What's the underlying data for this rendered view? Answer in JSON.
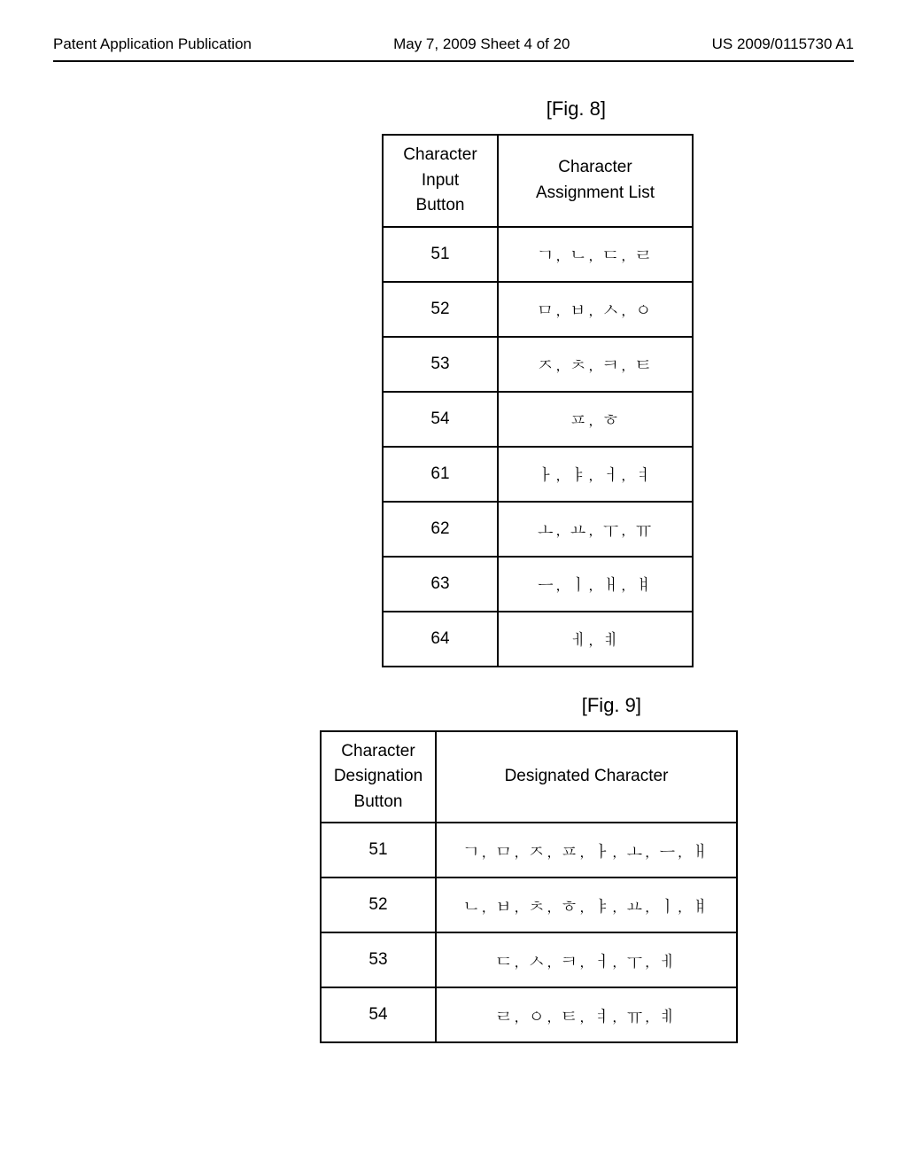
{
  "header": {
    "left": "Patent Application Publication",
    "center": "May 7, 2009  Sheet 4 of 20",
    "right": "US 2009/0115730 A1"
  },
  "fig8": {
    "label": "[Fig. 8]",
    "col1Header": "Character\nInput\nButton",
    "col2Header": "Character\nAssignment List",
    "rows": [
      {
        "button": "51",
        "chars": "ㄱ, ㄴ, ㄷ, ㄹ"
      },
      {
        "button": "52",
        "chars": "ㅁ, ㅂ, ㅅ, ㅇ"
      },
      {
        "button": "53",
        "chars": "ㅈ, ㅊ, ㅋ, ㅌ"
      },
      {
        "button": "54",
        "chars": "ㅍ, ㅎ"
      },
      {
        "button": "61",
        "chars": "ㅏ, ㅑ, ㅓ, ㅕ"
      },
      {
        "button": "62",
        "chars": "ㅗ, ㅛ, ㅜ, ㅠ"
      },
      {
        "button": "63",
        "chars": "ㅡ, ㅣ, ㅐ, ㅒ"
      },
      {
        "button": "64",
        "chars": "ㅔ, ㅖ"
      }
    ]
  },
  "fig9": {
    "label": "[Fig. 9]",
    "col1Header": "Character\nDesignation\nButton",
    "col2Header": "Designated Character",
    "rows": [
      {
        "button": "51",
        "chars": "ㄱ, ㅁ, ㅈ, ㅍ, ㅏ, ㅗ, ㅡ, ㅐ"
      },
      {
        "button": "52",
        "chars": "ㄴ, ㅂ, ㅊ, ㅎ, ㅑ, ㅛ, ㅣ, ㅒ"
      },
      {
        "button": "53",
        "chars": "ㄷ, ㅅ, ㅋ, ㅓ, ㅜ, ㅔ"
      },
      {
        "button": "54",
        "chars": "ㄹ, ㅇ, ㅌ, ㅕ, ㅠ, ㅖ"
      }
    ]
  }
}
